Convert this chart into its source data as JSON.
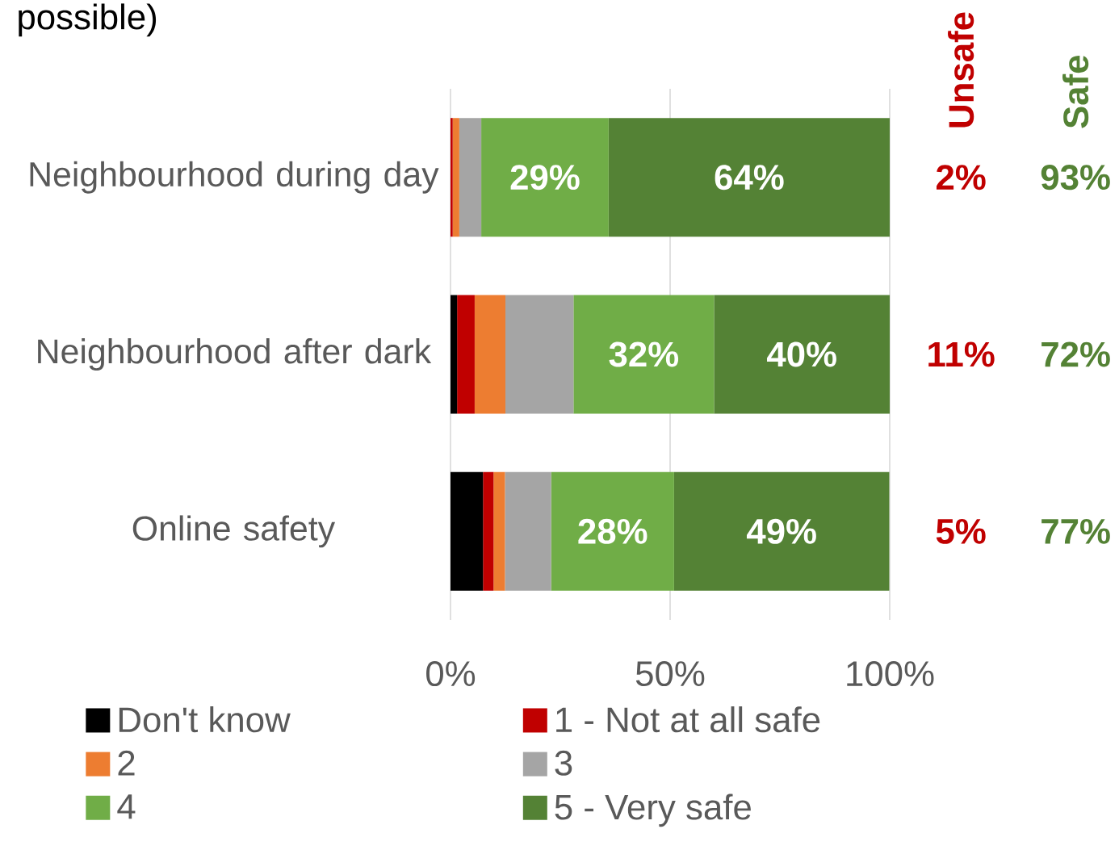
{
  "chart_data": {
    "type": "bar",
    "orientation": "horizontal",
    "stacked": true,
    "title": "possible)",
    "categories": [
      "Neighbourhood during day",
      "Neighbourhood after dark",
      "Online safety"
    ],
    "series": [
      {
        "name": "Don't know",
        "color": "#000000",
        "values": [
          0,
          1.5,
          7.4
        ]
      },
      {
        "name": "1 - Not at all safe",
        "color": "#C00000",
        "values": [
          0.5,
          4,
          2.4
        ]
      },
      {
        "name": "2",
        "color": "#ED7D31",
        "values": [
          1.5,
          7,
          2.6
        ]
      },
      {
        "name": "3",
        "color": "#A5A5A5",
        "values": [
          5,
          15.5,
          10.5
        ]
      },
      {
        "name": "4",
        "color": "#70AD47",
        "values": [
          29,
          32,
          28
        ],
        "value_labels": [
          "29%",
          "32%",
          "28%"
        ]
      },
      {
        "name": "5 - Very safe",
        "color": "#548235",
        "values": [
          64,
          40,
          49
        ],
        "value_labels": [
          "64%",
          "40%",
          "49%"
        ]
      }
    ],
    "xlim": [
      0,
      100
    ],
    "xticks": [
      {
        "value": 0,
        "label": "0%"
      },
      {
        "value": 50,
        "label": "50%"
      },
      {
        "value": 100,
        "label": "100%"
      }
    ],
    "grid": "x",
    "legend": "bottom",
    "annotations": [
      "Unsafe",
      "Safe",
      "2%",
      "93%",
      "11%",
      "72%",
      "5%",
      "77%"
    ]
  }
}
